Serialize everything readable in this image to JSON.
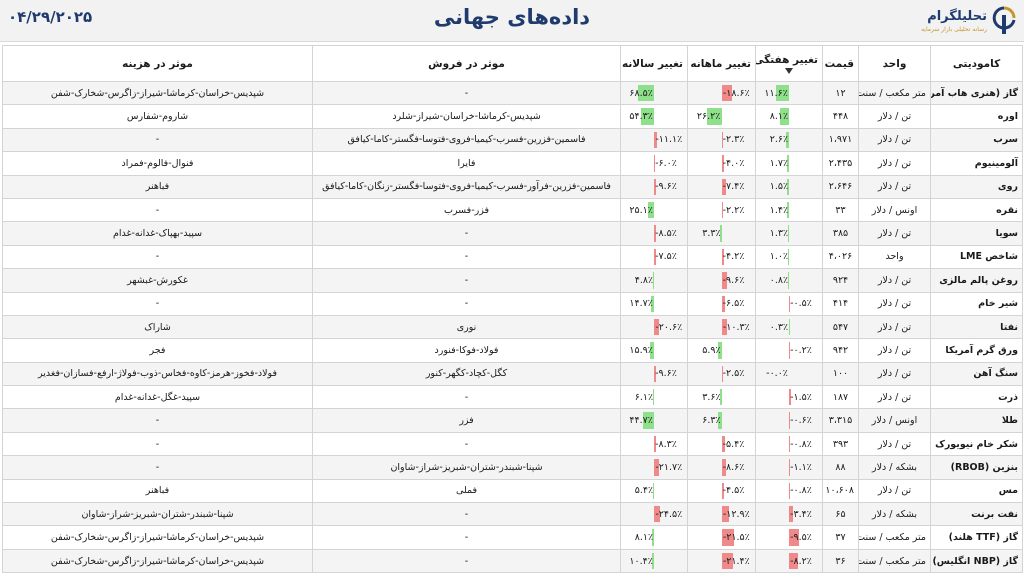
{
  "header": {
    "date": "۰۴/۲۹/۲۰۲۵",
    "title": "داده‌های جهانی",
    "brand_name": "تحلیلگرام",
    "brand_sub": "رسانه تحلیلی بازار سرمایه"
  },
  "colors": {
    "positive": "#8fe08a",
    "negative": "#f08a8a",
    "brand": "#1f3b6e",
    "accent": "#c5962c"
  },
  "columns": {
    "commodity": "کامودیتی",
    "unit": "واحد",
    "price": "قیمت",
    "weekly": "تغییر هفتگی",
    "monthly": "تغییر ماهانه",
    "yearly": "تغییر سالانه",
    "sales": "موثر در فروش",
    "cost": "موثر در هزینه"
  },
  "rows": [
    {
      "name": "گاز (هنری هاب آمریکا)",
      "unit": "متر مکعب / سنت",
      "price": "۱۲",
      "weekly": {
        "text": "۱۱.۶٪",
        "v": 11.6
      },
      "monthly": {
        "text": "-۱۸.۶٪",
        "v": -18.6
      },
      "yearly": {
        "text": "۶۸.۵٪",
        "v": 68.5
      },
      "sales": "-",
      "cost": "شپدیس-خراسان-کرماشا-شیراز-زاگرس-شخارک-شفن"
    },
    {
      "name": "اوره",
      "unit": "تن / دلار",
      "price": "۴۴۸",
      "weekly": {
        "text": "۸.۱٪",
        "v": 8.1
      },
      "monthly": {
        "text": "۲۶.۲٪",
        "v": 26.2
      },
      "yearly": {
        "text": "۵۴.۳٪",
        "v": 54.3
      },
      "sales": "شپدیس-کرماشا-خراسان-شیراز-شلرد",
      "cost": "شاروم-شفارس"
    },
    {
      "name": "سرب",
      "unit": "تن / دلار",
      "price": "۱،۹۷۱",
      "weekly": {
        "text": "۲.۶٪",
        "v": 2.6
      },
      "monthly": {
        "text": "-۲.۳٪",
        "v": -2.3
      },
      "yearly": {
        "text": "-۱۱.۱٪",
        "v": -11.1
      },
      "sales": "فاسمین-فزرین-فسرب-کیمیا-فروی-فتوسا-فگستر-کاما-کیافق",
      "cost": "-"
    },
    {
      "name": "آلومینیوم",
      "unit": "تن / دلار",
      "price": "۲،۴۳۵",
      "weekly": {
        "text": "۱.۷٪",
        "v": 1.7
      },
      "monthly": {
        "text": "-۴.۰٪",
        "v": -4.0
      },
      "yearly": {
        "text": "-۶.۰٪",
        "v": -6.0
      },
      "sales": "فایرا",
      "cost": "فنوال-فالوم-فمراد"
    },
    {
      "name": "روی",
      "unit": "تن / دلار",
      "price": "۲،۶۴۶",
      "weekly": {
        "text": "۱.۵٪",
        "v": 1.5
      },
      "monthly": {
        "text": "-۷.۴٪",
        "v": -7.4
      },
      "yearly": {
        "text": "-۹.۶٪",
        "v": -9.6
      },
      "sales": "فاسمین-فزرین-فرآور-فسرب-کیمیا-فروی-فتوسا-فگستر-زنگان-کاما-کیافق",
      "cost": "فباهنر"
    },
    {
      "name": "نقره",
      "unit": "اونس / دلار",
      "price": "۳۳",
      "weekly": {
        "text": "۱.۴٪",
        "v": 1.4
      },
      "monthly": {
        "text": "-۲.۲٪",
        "v": -2.2
      },
      "yearly": {
        "text": "۲۵.۱٪",
        "v": 25.1
      },
      "sales": "فزر-فسرب",
      "cost": "-"
    },
    {
      "name": "سویا",
      "unit": "تن / دلار",
      "price": "۳۸۵",
      "weekly": {
        "text": "۱.۳٪",
        "v": 1.3
      },
      "monthly": {
        "text": "۳.۳٪",
        "v": 3.3
      },
      "yearly": {
        "text": "-۸.۵٪",
        "v": -8.5
      },
      "sales": "-",
      "cost": "سپید-بهپاک-غدانه-غدام"
    },
    {
      "name": "شاخص LME",
      "unit": "واحد",
      "price": "۴،۰۲۶",
      "weekly": {
        "text": "۱.۰٪",
        "v": 1.0
      },
      "monthly": {
        "text": "-۴.۲٪",
        "v": -4.2
      },
      "yearly": {
        "text": "-۷.۵٪",
        "v": -7.5
      },
      "sales": "-",
      "cost": "-"
    },
    {
      "name": "روغن پالم مالزی",
      "unit": "تن / دلار",
      "price": "۹۲۴",
      "weekly": {
        "text": "۰.۸٪",
        "v": 0.8
      },
      "monthly": {
        "text": "-۹.۶٪",
        "v": -9.6
      },
      "yearly": {
        "text": "۴.۸٪",
        "v": 4.8
      },
      "sales": "-",
      "cost": "غکورش-غبشهر"
    },
    {
      "name": "شیر خام",
      "unit": "تن / دلار",
      "price": "۴۱۴",
      "weekly": {
        "text": "-۰.۵٪",
        "v": -0.5
      },
      "monthly": {
        "text": "-۶.۵٪",
        "v": -6.5
      },
      "yearly": {
        "text": "۱۴.۷٪",
        "v": 14.7
      },
      "sales": "-",
      "cost": "-"
    },
    {
      "name": "نفتا",
      "unit": "تن / دلار",
      "price": "۵۴۷",
      "weekly": {
        "text": "۰.۳٪",
        "v": 0.3
      },
      "monthly": {
        "text": "-۱۰.۳٪",
        "v": -10.3
      },
      "yearly": {
        "text": "-۲۰.۶٪",
        "v": -20.6
      },
      "sales": "نوری",
      "cost": "شاراک"
    },
    {
      "name": "ورق گرم آمریکا",
      "unit": "تن / دلار",
      "price": "۹۴۲",
      "weekly": {
        "text": "-۰.۲٪",
        "v": -0.2
      },
      "monthly": {
        "text": "۵.۹٪",
        "v": 5.9
      },
      "yearly": {
        "text": "۱۵.۹٪",
        "v": 15.9
      },
      "sales": "فولاد-فوکا-فنورد",
      "cost": "فجر"
    },
    {
      "name": "سنگ آهن",
      "unit": "تن / دلار",
      "price": "۱۰۰",
      "weekly": {
        "text": "-۰.۰٪",
        "v": 0.0
      },
      "monthly": {
        "text": "-۲.۵٪",
        "v": -2.5
      },
      "yearly": {
        "text": "-۹.۶٪",
        "v": -9.6
      },
      "sales": "کگل-کچاد-کگهر-کنور",
      "cost": "فولاد-فخوز-هرمز-کاوه-فخاس-ذوب-فولاژ-ارفع-فسازان-فغدیر"
    },
    {
      "name": "ذرت",
      "unit": "تن / دلار",
      "price": "۱۸۷",
      "weekly": {
        "text": "-۱.۵٪",
        "v": -1.5
      },
      "monthly": {
        "text": "۳.۶٪",
        "v": 3.6
      },
      "yearly": {
        "text": "۶.۱٪",
        "v": 6.1
      },
      "sales": "-",
      "cost": "سپید-غگل-غدانه-غدام"
    },
    {
      "name": "طلا",
      "unit": "اونس / دلار",
      "price": "۳،۳۱۵",
      "weekly": {
        "text": "-۰.۶٪",
        "v": -0.6
      },
      "monthly": {
        "text": "۶.۳٪",
        "v": 6.3
      },
      "yearly": {
        "text": "۴۴.۷٪",
        "v": 44.7
      },
      "sales": "فزر",
      "cost": "-"
    },
    {
      "name": "شکر خام نیویورک",
      "unit": "تن / دلار",
      "price": "۳۹۳",
      "weekly": {
        "text": "-۰.۸٪",
        "v": -0.8
      },
      "monthly": {
        "text": "-۵.۴٪",
        "v": -5.4
      },
      "yearly": {
        "text": "-۸.۳٪",
        "v": -8.3
      },
      "sales": "-",
      "cost": "-"
    },
    {
      "name": "بنزین (RBOB)",
      "unit": "بشکه / دلار",
      "price": "۸۸",
      "weekly": {
        "text": "-۱.۱٪",
        "v": -1.1
      },
      "monthly": {
        "text": "-۸.۶٪",
        "v": -8.6
      },
      "yearly": {
        "text": "-۲۱.۷٪",
        "v": -21.7
      },
      "sales": "شپنا-شبندر-شتران-شبریز-شراز-شاوان",
      "cost": "-"
    },
    {
      "name": "مس",
      "unit": "تن / دلار",
      "price": "۱۰،۶۰۸",
      "weekly": {
        "text": "-۰.۸٪",
        "v": -0.8
      },
      "monthly": {
        "text": "-۴.۵٪",
        "v": -4.5
      },
      "yearly": {
        "text": "۵.۴٪",
        "v": 5.4
      },
      "sales": "فملی",
      "cost": "فباهنر"
    },
    {
      "name": "نفت برنت",
      "unit": "بشکه / دلار",
      "price": "۶۵",
      "weekly": {
        "text": "-۳.۴٪",
        "v": -3.4
      },
      "monthly": {
        "text": "-۱۲.۹٪",
        "v": -12.9
      },
      "yearly": {
        "text": "-۲۴.۵٪",
        "v": -24.5
      },
      "sales": "-",
      "cost": "شپنا-شبندر-شتران-شبریز-شراز-شاوان"
    },
    {
      "name": "گاز (TTF هلند)",
      "unit": "متر مکعب / سنت",
      "price": "۳۷",
      "weekly": {
        "text": "-۹.۵٪",
        "v": -9.5
      },
      "monthly": {
        "text": "-۲۱.۵٪",
        "v": -21.5
      },
      "yearly": {
        "text": "۸.۱٪",
        "v": 8.1
      },
      "sales": "-",
      "cost": "شپدیس-خراسان-کرماشا-شیراز-زاگرس-شخارک-شفن"
    },
    {
      "name": "گاز (NBP انگلیس)",
      "unit": "متر مکعب / سنت",
      "price": "۳۶",
      "weekly": {
        "text": "-۸.۲٪",
        "v": -8.2
      },
      "monthly": {
        "text": "-۲۱.۴٪",
        "v": -21.4
      },
      "yearly": {
        "text": "۱۰.۴٪",
        "v": 10.4
      },
      "sales": "-",
      "cost": "شپدیس-خراسان-کرماشا-شیراز-زاگرس-شخارک-شفن"
    }
  ]
}
